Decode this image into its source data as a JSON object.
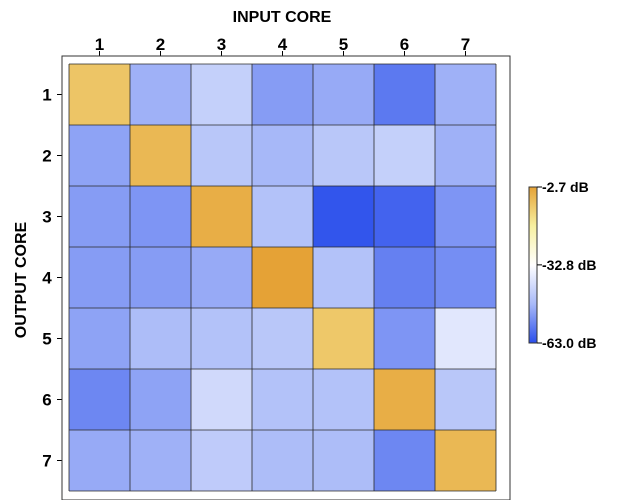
{
  "chart_data": {
    "type": "heatmap",
    "x_axis_title": "INPUT CORE",
    "y_axis_title": "OUTPUT CORE",
    "x_labels": [
      "1",
      "2",
      "3",
      "4",
      "5",
      "6",
      "7"
    ],
    "y_labels": [
      "1",
      "2",
      "3",
      "4",
      "5",
      "6",
      "7"
    ],
    "unit": "dB",
    "color_range": [
      -63.0,
      -2.7
    ],
    "colorbar": {
      "tick_values": [
        -2.7,
        -32.8,
        -63.0
      ],
      "tick_labels": [
        "-2.7 dB",
        "-32.8 dB",
        "-63.0 dB"
      ],
      "colors": [
        "#e5a236",
        "#f7f0a0",
        "#ffffff",
        "#a8b9f8",
        "#2a4eeb"
      ]
    },
    "values": [
      [
        -9.5,
        -49,
        -43,
        -52,
        -50,
        -57,
        -49
      ],
      [
        -51,
        -7,
        -45,
        -48,
        -45,
        -43,
        -49
      ],
      [
        -52,
        -53,
        -5,
        -46,
        -62,
        -60,
        -53
      ],
      [
        -52,
        -52,
        -50,
        -2.7,
        -46,
        -56,
        -54
      ],
      [
        -51,
        -47,
        -46,
        -45,
        -10,
        -53,
        -38
      ],
      [
        -55,
        -51,
        -41,
        -46,
        -46,
        -5,
        -45
      ],
      [
        -50,
        -49,
        -44,
        -47,
        -47,
        -55,
        -7
      ]
    ]
  }
}
